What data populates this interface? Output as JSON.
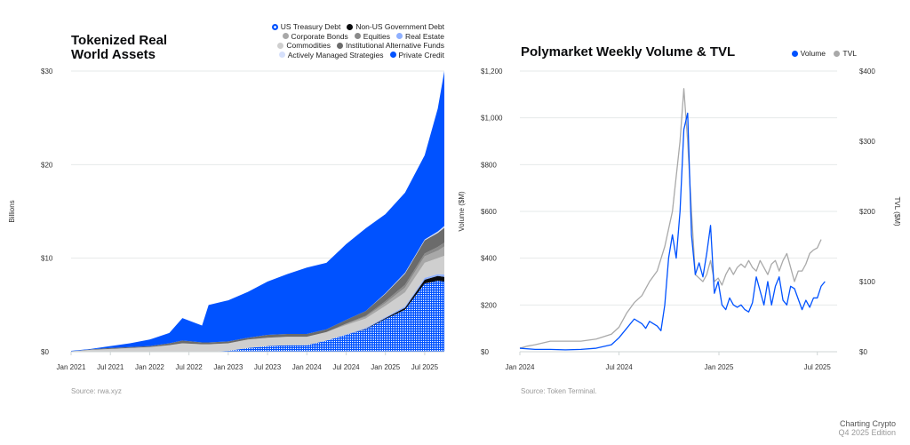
{
  "chart_data": [
    {
      "type": "area",
      "title": "Tokenized Real World Assets",
      "title_lines": [
        "Tokenized Real",
        "World Assets"
      ],
      "ylabel": "Billions",
      "xlabel": "",
      "ylim": [
        0,
        30
      ],
      "yticks": [
        0,
        10,
        20,
        30
      ],
      "ytick_labels": [
        "$0",
        "$10",
        "$20",
        "$30"
      ],
      "xtick_labels": [
        "Jan 2021",
        "Jul 2021",
        "Jan 2022",
        "Jul 2022",
        "Jan 2023",
        "Jul 2023",
        "Jan 2024",
        "Jul 2024",
        "Jan 2025",
        "Jul 2025"
      ],
      "xtick_months": [
        "2021-01",
        "2021-07",
        "2022-01",
        "2022-07",
        "2023-01",
        "2023-07",
        "2024-01",
        "2024-07",
        "2025-01",
        "2025-07"
      ],
      "xrange": [
        "2021-01",
        "2025-10"
      ],
      "grid": true,
      "legend_placement": "top-right",
      "source": "Source: rwa.xyz",
      "x": [
        "2021-01",
        "2021-04",
        "2021-07",
        "2021-10",
        "2022-01",
        "2022-04",
        "2022-06",
        "2022-09",
        "2022-10",
        "2023-01",
        "2023-04",
        "2023-07",
        "2023-10",
        "2024-01",
        "2024-04",
        "2024-07",
        "2024-10",
        "2025-01",
        "2025-04",
        "2025-07",
        "2025-09",
        "2025-10"
      ],
      "series": [
        {
          "name": "US Treasury Debt",
          "color": "#0052ff",
          "pattern": true,
          "values": [
            0,
            0,
            0,
            0,
            0,
            0,
            0,
            0,
            0,
            0.1,
            0.4,
            0.6,
            0.7,
            0.7,
            1.2,
            1.8,
            2.4,
            3.5,
            4.5,
            7.3,
            7.6,
            7.5
          ]
        },
        {
          "name": "Non-US Government Debt",
          "color": "#0a0b0d",
          "values": [
            0,
            0,
            0,
            0,
            0,
            0,
            0,
            0,
            0,
            0,
            0,
            0,
            0,
            0,
            0,
            0,
            0.05,
            0.1,
            0.2,
            0.4,
            0.5,
            0.5
          ]
        },
        {
          "name": "Real Estate",
          "color": "#8fb0ff",
          "values": [
            0,
            0,
            0,
            0,
            0,
            0,
            0,
            0,
            0,
            0,
            0,
            0,
            0,
            0,
            0,
            0.05,
            0.1,
            0.1,
            0.15,
            0.2,
            0.2,
            0.25
          ]
        },
        {
          "name": "Commodities",
          "color": "#cfcfcf",
          "values": [
            0.05,
            0.2,
            0.3,
            0.4,
            0.5,
            0.7,
            0.9,
            0.8,
            0.8,
            0.8,
            0.9,
            0.9,
            0.9,
            0.9,
            0.9,
            1.0,
            1.0,
            1.2,
            1.5,
            1.6,
            1.7,
            2.0
          ]
        },
        {
          "name": "Corporate Bonds",
          "color": "#a8a8a8",
          "values": [
            0,
            0,
            0,
            0,
            0,
            0,
            0,
            0,
            0,
            0,
            0,
            0,
            0,
            0,
            0,
            0.1,
            0.2,
            0.3,
            0.5,
            0.7,
            0.8,
            1.0
          ]
        },
        {
          "name": "Equities",
          "color": "#8a8a8a",
          "values": [
            0,
            0,
            0,
            0,
            0,
            0,
            0,
            0,
            0,
            0,
            0,
            0,
            0,
            0,
            0,
            0.05,
            0.1,
            0.2,
            0.3,
            0.3,
            0.4,
            0.4
          ]
        },
        {
          "name": "Institutional Alternative Funds",
          "color": "#6b6b6b",
          "values": [
            0,
            0.05,
            0.1,
            0.1,
            0.1,
            0.2,
            0.3,
            0.2,
            0.2,
            0.2,
            0.2,
            0.3,
            0.3,
            0.3,
            0.3,
            0.4,
            0.5,
            0.8,
            1.2,
            1.4,
            1.5,
            1.6
          ]
        },
        {
          "name": "Actively Managed Strategies",
          "color": "#d6e0fb",
          "values": [
            0,
            0,
            0,
            0,
            0,
            0,
            0,
            0,
            0,
            0,
            0,
            0,
            0,
            0,
            0,
            0,
            0,
            0.05,
            0.1,
            0.1,
            0.15,
            0.2
          ]
        },
        {
          "name": "Private Credit",
          "color": "#0052ff",
          "values": [
            0.05,
            0.05,
            0.2,
            0.4,
            0.7,
            1.1,
            2.4,
            1.8,
            4.0,
            4.4,
            4.9,
            5.7,
            6.4,
            7.1,
            7.1,
            8.1,
            8.85,
            8.45,
            8.55,
            9.0,
            13.15,
            16.55
          ]
        }
      ],
      "legend_rows": [
        [
          "US Treasury Debt",
          "Non-US Government Debt"
        ],
        [
          "Corporate Bonds",
          "Equities",
          "Real Estate"
        ],
        [
          "Commodities",
          "Institutional Alternative Funds"
        ],
        [
          "Actively Managed Strategies",
          "Private Credit"
        ]
      ]
    },
    {
      "type": "line",
      "title": "Polymarket Weekly Volume & TVL",
      "ylabel": "Volume ($M)",
      "y2label": "TVL ($M)",
      "ylim": [
        0,
        1200
      ],
      "y2lim": [
        0,
        400
      ],
      "ytick_labels": [
        "$0",
        "$200",
        "$400",
        "$600",
        "$800",
        "$1,000",
        "$1,200"
      ],
      "yticks": [
        0,
        200,
        400,
        600,
        800,
        1000,
        1200
      ],
      "y2ticks": [
        0,
        100,
        200,
        300,
        400
      ],
      "y2tick_labels": [
        "$0",
        "$100",
        "$200",
        "$300",
        "$400"
      ],
      "x_unit": "weeks since Jan 2024",
      "xtick_labels": [
        "Jan 2024",
        "Jul 2024",
        "Jan 2025",
        "Jul 2025"
      ],
      "xtick_weeks": [
        0,
        26,
        52.2,
        78
      ],
      "xrange": [
        0,
        83
      ],
      "grid": true,
      "legend_placement": "top-right",
      "source": "Source: Token Terminal.",
      "series": [
        {
          "name": "Volume",
          "color": "#0052ff",
          "axis": "left",
          "x": [
            0,
            4,
            8,
            12,
            16,
            20,
            24,
            26,
            28,
            30,
            32,
            33,
            34,
            36,
            37,
            38,
            39,
            40,
            41,
            42,
            43,
            44,
            45,
            46,
            47,
            48,
            49,
            50,
            51,
            52,
            53,
            54,
            55,
            56,
            57,
            58,
            59,
            60,
            61,
            62,
            63,
            64,
            65,
            66,
            67,
            68,
            69,
            70,
            71,
            72,
            74,
            75,
            76,
            77,
            78,
            79,
            80
          ],
          "values": [
            15,
            10,
            10,
            8,
            10,
            15,
            30,
            60,
            100,
            140,
            120,
            100,
            130,
            110,
            90,
            200,
            400,
            500,
            400,
            600,
            950,
            1020,
            500,
            330,
            380,
            320,
            420,
            540,
            250,
            300,
            200,
            180,
            230,
            200,
            190,
            200,
            180,
            170,
            210,
            320,
            260,
            200,
            300,
            200,
            280,
            320,
            220,
            200,
            280,
            270,
            180,
            220,
            190,
            230,
            230,
            280,
            300
          ]
        },
        {
          "name": "TVL",
          "color": "#a9a9a9",
          "axis": "right",
          "x": [
            0,
            2,
            4,
            8,
            12,
            16,
            20,
            24,
            26,
            28,
            30,
            32,
            33,
            34,
            36,
            38,
            40,
            42,
            43,
            44,
            45,
            46,
            47,
            48,
            49,
            50,
            51,
            52,
            53,
            54,
            55,
            56,
            57,
            58,
            59,
            60,
            61,
            62,
            63,
            64,
            65,
            66,
            67,
            68,
            69,
            70,
            71,
            72,
            73,
            74,
            75,
            76,
            77,
            78,
            79
          ],
          "values": [
            5,
            8,
            10,
            15,
            15,
            15,
            18,
            25,
            35,
            55,
            70,
            80,
            90,
            100,
            115,
            150,
            200,
            300,
            375,
            300,
            200,
            110,
            105,
            100,
            110,
            130,
            100,
            105,
            95,
            110,
            120,
            110,
            120,
            125,
            120,
            130,
            120,
            115,
            130,
            120,
            110,
            125,
            130,
            115,
            130,
            140,
            120,
            100,
            115,
            115,
            125,
            140,
            145,
            148,
            160
          ]
        }
      ]
    }
  ],
  "footer": {
    "brand": "Charting Crypto",
    "edition": "Q4 2025 Edition"
  }
}
